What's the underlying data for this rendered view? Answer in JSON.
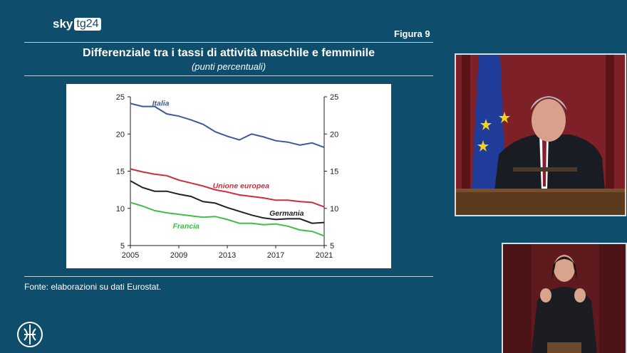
{
  "brand": {
    "sky": "sky",
    "tg": "tg24"
  },
  "figure_label": "Figura 9",
  "title": "Differenziale tra i tassi di attività maschile e femminile",
  "subtitle": "(punti percentuali)",
  "source": "Fonte: elaborazioni su dati Eurostat.",
  "chart_data": {
    "type": "line",
    "title": "Differenziale tra i tassi di attività maschile e femminile",
    "subtitle": "(punti percentuali)",
    "x_ticks": [
      "2005",
      "2009",
      "2013",
      "2017",
      "2021"
    ],
    "y_ticks": [
      "5",
      "10",
      "15",
      "20",
      "25"
    ],
    "xlim": [
      2005,
      2021
    ],
    "ylim": [
      5,
      25
    ],
    "x": [
      2005,
      2006,
      2007,
      2008,
      2009,
      2010,
      2011,
      2012,
      2013,
      2014,
      2015,
      2016,
      2017,
      2018,
      2019,
      2020,
      2021
    ],
    "series": [
      {
        "name": "Italia",
        "color": "#3d5a9b",
        "values": [
          24.1,
          23.7,
          23.7,
          22.7,
          22.4,
          21.9,
          21.3,
          20.3,
          19.7,
          19.2,
          20.0,
          19.6,
          19.1,
          18.9,
          18.5,
          18.8,
          18.2
        ]
      },
      {
        "name": "Unione europea",
        "color": "#d22b3b",
        "values": [
          15.3,
          14.9,
          14.6,
          14.4,
          13.8,
          13.4,
          13.0,
          12.5,
          12.2,
          11.8,
          11.6,
          11.4,
          11.1,
          11.1,
          10.9,
          10.8,
          10.2
        ]
      },
      {
        "name": "Germania",
        "color": "#222222",
        "values": [
          13.7,
          12.8,
          12.3,
          12.3,
          11.9,
          11.6,
          10.9,
          10.7,
          10.1,
          9.6,
          9.1,
          8.7,
          8.5,
          8.6,
          8.6,
          8.0,
          8.1
        ]
      },
      {
        "name": "Francia",
        "color": "#3fbf46",
        "values": [
          10.8,
          10.3,
          9.7,
          9.4,
          9.2,
          9.0,
          8.8,
          8.9,
          8.5,
          8.0,
          8.0,
          7.8,
          7.9,
          7.6,
          7.1,
          6.9,
          6.3
        ]
      }
    ]
  }
}
